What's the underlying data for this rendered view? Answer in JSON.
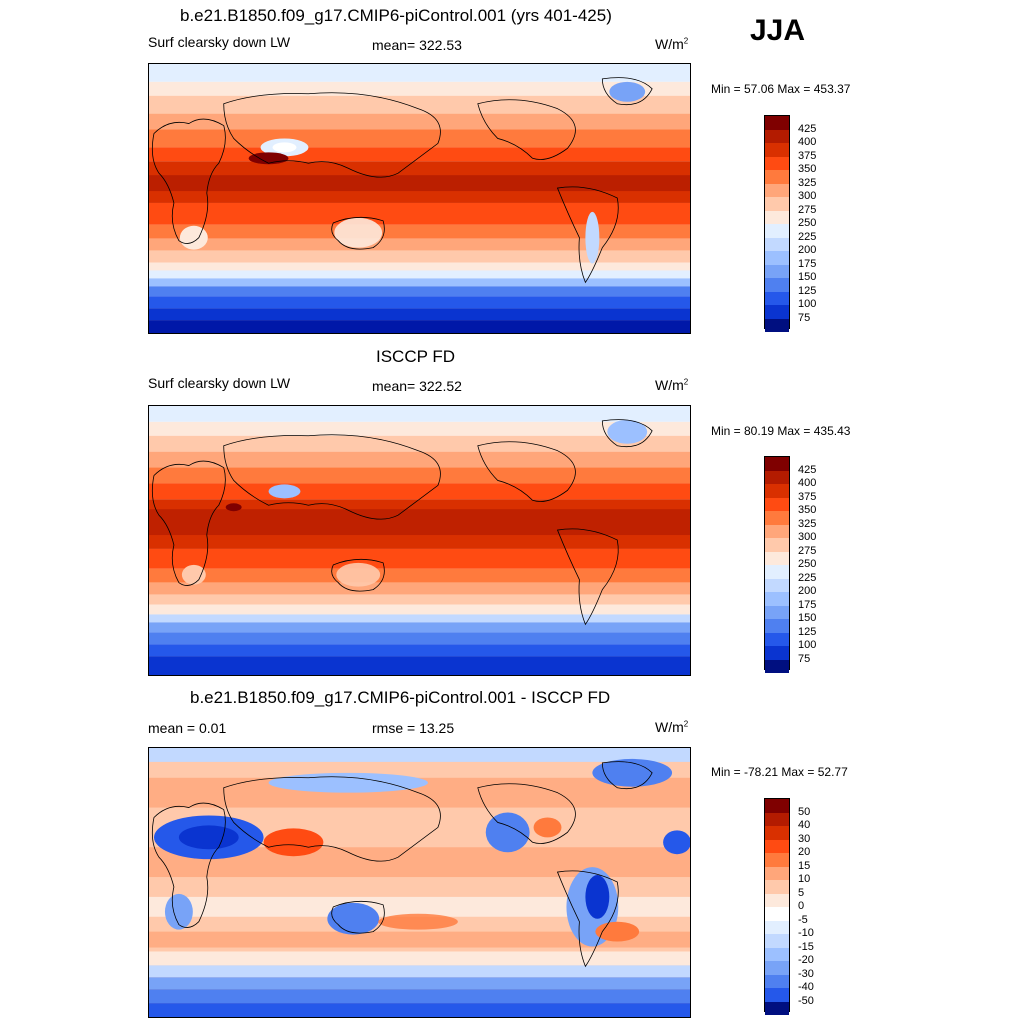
{
  "header": {
    "title": "b.e21.B1850.f09_g17.CMIP6-piControl.001 (yrs 401-425)",
    "season": "JJA"
  },
  "panels": [
    {
      "id": "model",
      "title": "",
      "left_label": "Surf clearsky down LW",
      "center_label": "mean= 322.53",
      "units_base": "W/m",
      "units_exp": "2",
      "minmax": "Min =  57.06 Max = 453.37",
      "colorbar_colors": [
        "#7f0000",
        "#b31b00",
        "#d93000",
        "#ff4b12",
        "#ff7a3d",
        "#ffa67a",
        "#ffc9ab",
        "#fde9dc",
        "#e2efff",
        "#c2d9ff",
        "#9cc0ff",
        "#78a3f7",
        "#4f80f0",
        "#2558ea",
        "#0a34d0",
        "#0018a8",
        "#000f80"
      ],
      "colorbar_labels": [
        "425",
        "400",
        "375",
        "350",
        "325",
        "300",
        "275",
        "250",
        "225",
        "200",
        "175",
        "150",
        "125",
        "100",
        "75"
      ]
    },
    {
      "id": "obs",
      "title": "ISCCP FD",
      "left_label": "Surf clearsky down LW",
      "center_label": "mean= 322.52",
      "units_base": "W/m",
      "units_exp": "2",
      "minmax": "Min =  80.19 Max = 435.43",
      "colorbar_colors": [
        "#7f0000",
        "#b31b00",
        "#d93000",
        "#ff4b12",
        "#ff7a3d",
        "#ffa67a",
        "#ffc9ab",
        "#fde9dc",
        "#e2efff",
        "#c2d9ff",
        "#9cc0ff",
        "#78a3f7",
        "#4f80f0",
        "#2558ea",
        "#0a34d0",
        "#0018a8",
        "#000f80"
      ],
      "colorbar_labels": [
        "425",
        "400",
        "375",
        "350",
        "325",
        "300",
        "275",
        "250",
        "225",
        "200",
        "175",
        "150",
        "125",
        "100",
        "75"
      ]
    },
    {
      "id": "diff",
      "title": "b.e21.B1850.f09_g17.CMIP6-piControl.001 - ISCCP FD",
      "left_label": "mean =   0.01",
      "center_label": "rmse =  13.25",
      "units_base": "W/m",
      "units_exp": "2",
      "minmax": "Min = -78.21 Max =  52.77",
      "colorbar_colors": [
        "#7f0000",
        "#b31b00",
        "#d93000",
        "#ff4b12",
        "#ff7a3d",
        "#ffa67a",
        "#ffc9ab",
        "#fde9dc",
        "#ffffff",
        "#e2efff",
        "#c2d9ff",
        "#9cc0ff",
        "#78a3f7",
        "#4f80f0",
        "#2558ea",
        "#0a34d0",
        "#000f80"
      ],
      "colorbar_labels": [
        "50",
        "40",
        "30",
        "20",
        "15",
        "10",
        "5",
        "0",
        "-5",
        "-10",
        "-15",
        "-20",
        "-30",
        "-40",
        "-50"
      ]
    }
  ]
}
